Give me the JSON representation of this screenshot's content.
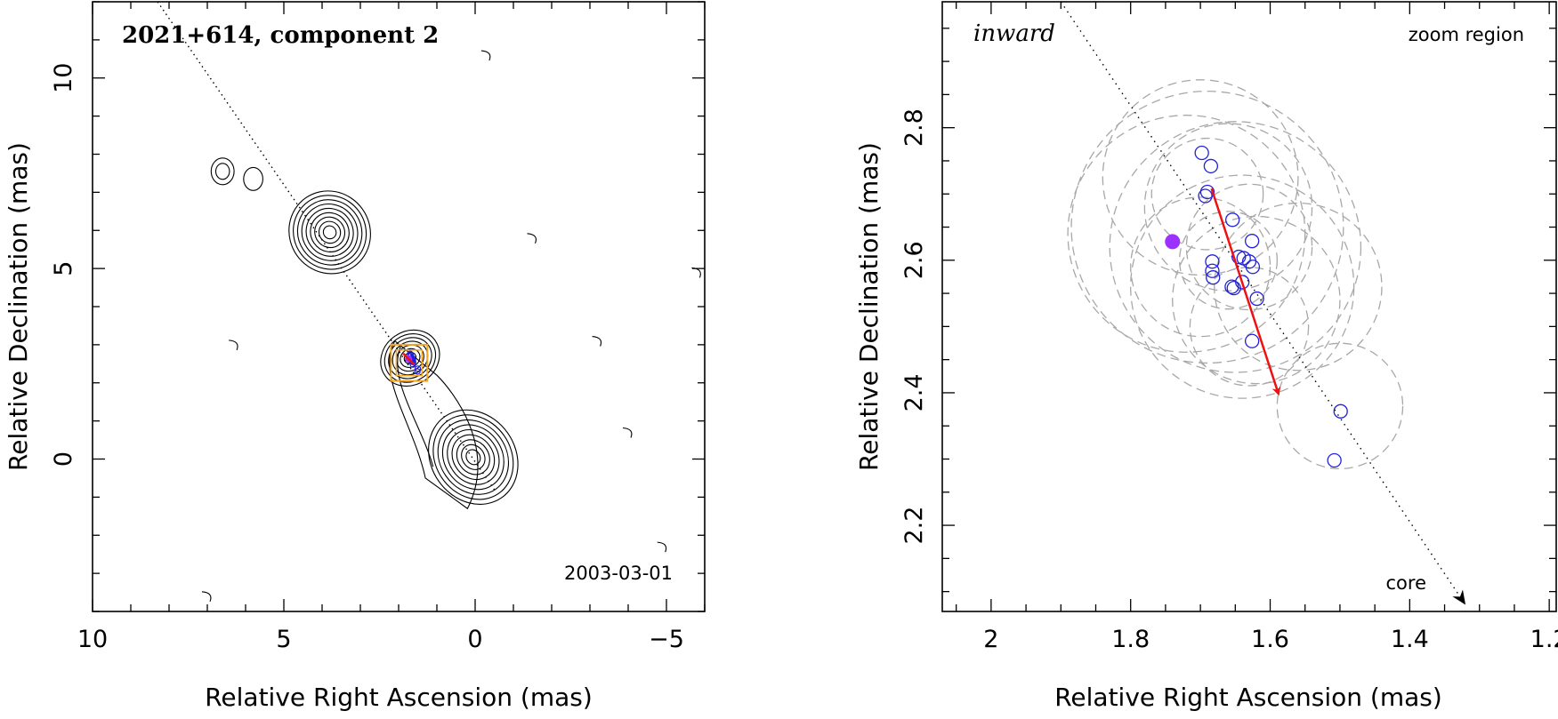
{
  "chart_data": [
    {
      "type": "scatter",
      "panel": "left",
      "title": "2021+614, component 2",
      "date_label": "2003-03-01",
      "xlabel": "Relative Right Ascension (mas)",
      "ylabel": "Relative Declination (mas)",
      "xlim": [
        10,
        -6
      ],
      "ylim": [
        -4,
        12
      ],
      "xticks": [
        10,
        5,
        0,
        -5
      ],
      "xtick_labels": [
        "10",
        "5",
        "0",
        "−5"
      ],
      "yticks": [
        0,
        5,
        10
      ],
      "ytick_labels": [
        "0",
        "5",
        "10"
      ],
      "contour_centers": [
        {
          "name": "core",
          "x": 0.05,
          "y": 0.05,
          "rx": 1.1,
          "ry": 1.3,
          "levels": 9
        },
        {
          "name": "knot-north",
          "x": 3.8,
          "y": 5.95,
          "rx": 1.05,
          "ry": 1.1,
          "levels": 9
        },
        {
          "name": "knot-middle",
          "x": 1.7,
          "y": 2.65,
          "rx": 0.8,
          "ry": 0.7,
          "levels": 7
        },
        {
          "name": "isolated-1",
          "x": 6.6,
          "y": 7.55,
          "rx": 0.3,
          "ry": 0.35,
          "levels": 2
        },
        {
          "name": "isolated-2",
          "x": 5.8,
          "y": 7.35,
          "rx": 0.25,
          "ry": 0.3,
          "levels": 1
        }
      ],
      "jet_axis": {
        "x": [
          8.3,
          -0.5
        ],
        "y": [
          12,
          -0.8
        ]
      },
      "zoom_box": {
        "x": [
          1.25,
          2.2
        ],
        "y": [
          2.05,
          3.0
        ]
      },
      "marker": {
        "x": 1.74,
        "y": 2.63
      }
    },
    {
      "type": "scatter",
      "panel": "right",
      "title": "zoom region",
      "direction_label": "inward",
      "core_label": "core",
      "xlabel": "Relative Right Ascension (mas)",
      "ylabel": "Relative Declination (mas)",
      "xlim": [
        2.07,
        1.19
      ],
      "ylim": [
        2.07,
        2.99
      ],
      "xticks": [
        2.0,
        1.8,
        1.6,
        1.4,
        1.2
      ],
      "xtick_labels": [
        "2",
        "1.8",
        "1.6",
        "1.4",
        "1.2"
      ],
      "yticks": [
        2.2,
        2.4,
        2.6,
        2.8
      ],
      "ytick_labels": [
        "2.2",
        "2.4",
        "2.6",
        "2.8"
      ],
      "points": [
        {
          "x": 1.698,
          "y": 2.762
        },
        {
          "x": 1.685,
          "y": 2.742
        },
        {
          "x": 1.69,
          "y": 2.703
        },
        {
          "x": 1.693,
          "y": 2.697
        },
        {
          "x": 1.654,
          "y": 2.661
        },
        {
          "x": 1.626,
          "y": 2.629
        },
        {
          "x": 1.645,
          "y": 2.605
        },
        {
          "x": 1.638,
          "y": 2.603
        },
        {
          "x": 1.63,
          "y": 2.598
        },
        {
          "x": 1.625,
          "y": 2.59
        },
        {
          "x": 1.683,
          "y": 2.598
        },
        {
          "x": 1.683,
          "y": 2.584
        },
        {
          "x": 1.682,
          "y": 2.574
        },
        {
          "x": 1.64,
          "y": 2.567
        },
        {
          "x": 1.655,
          "y": 2.56
        },
        {
          "x": 1.652,
          "y": 2.558
        },
        {
          "x": 1.619,
          "y": 2.542
        },
        {
          "x": 1.626,
          "y": 2.478
        },
        {
          "x": 1.499,
          "y": 2.372
        },
        {
          "x": 1.508,
          "y": 2.298
        }
      ],
      "uncertainty_circles": [
        {
          "x": 1.7,
          "y": 2.725,
          "r": 0.14
        },
        {
          "x": 1.72,
          "y": 2.64,
          "r": 0.17
        },
        {
          "x": 1.69,
          "y": 2.65,
          "r": 0.195
        },
        {
          "x": 1.65,
          "y": 2.62,
          "r": 0.18
        },
        {
          "x": 1.66,
          "y": 2.68,
          "r": 0.12
        },
        {
          "x": 1.63,
          "y": 2.62,
          "r": 0.09
        },
        {
          "x": 1.64,
          "y": 2.56,
          "r": 0.16
        },
        {
          "x": 1.62,
          "y": 2.54,
          "r": 0.12
        },
        {
          "x": 1.7,
          "y": 2.59,
          "r": 0.1
        },
        {
          "x": 1.66,
          "y": 2.6,
          "r": 0.07
        },
        {
          "x": 1.69,
          "y": 2.7,
          "r": 0.08
        },
        {
          "x": 1.63,
          "y": 2.5,
          "r": 0.085
        },
        {
          "x": 1.5,
          "y": 2.38,
          "r": 0.09
        },
        {
          "x": 1.56,
          "y": 2.56,
          "r": 0.12
        }
      ],
      "filled_marker": {
        "x": 1.74,
        "y": 2.628
      },
      "motion_vector": {
        "from": {
          "x": 1.684,
          "y": 2.708
        },
        "to": {
          "x": 1.588,
          "y": 2.398
        }
      },
      "jet_axis": {
        "from": {
          "x": 1.9,
          "y": 2.99
        },
        "to": {
          "x": 1.32,
          "y": 2.08
        }
      }
    }
  ],
  "colors": {
    "axes": "#000000",
    "contour": "#000000",
    "points": "#2222dd",
    "filled_marker": "#9b30ff",
    "vector": "#ee1111",
    "box": "#f5a623",
    "circles": "#a8a8a8"
  }
}
